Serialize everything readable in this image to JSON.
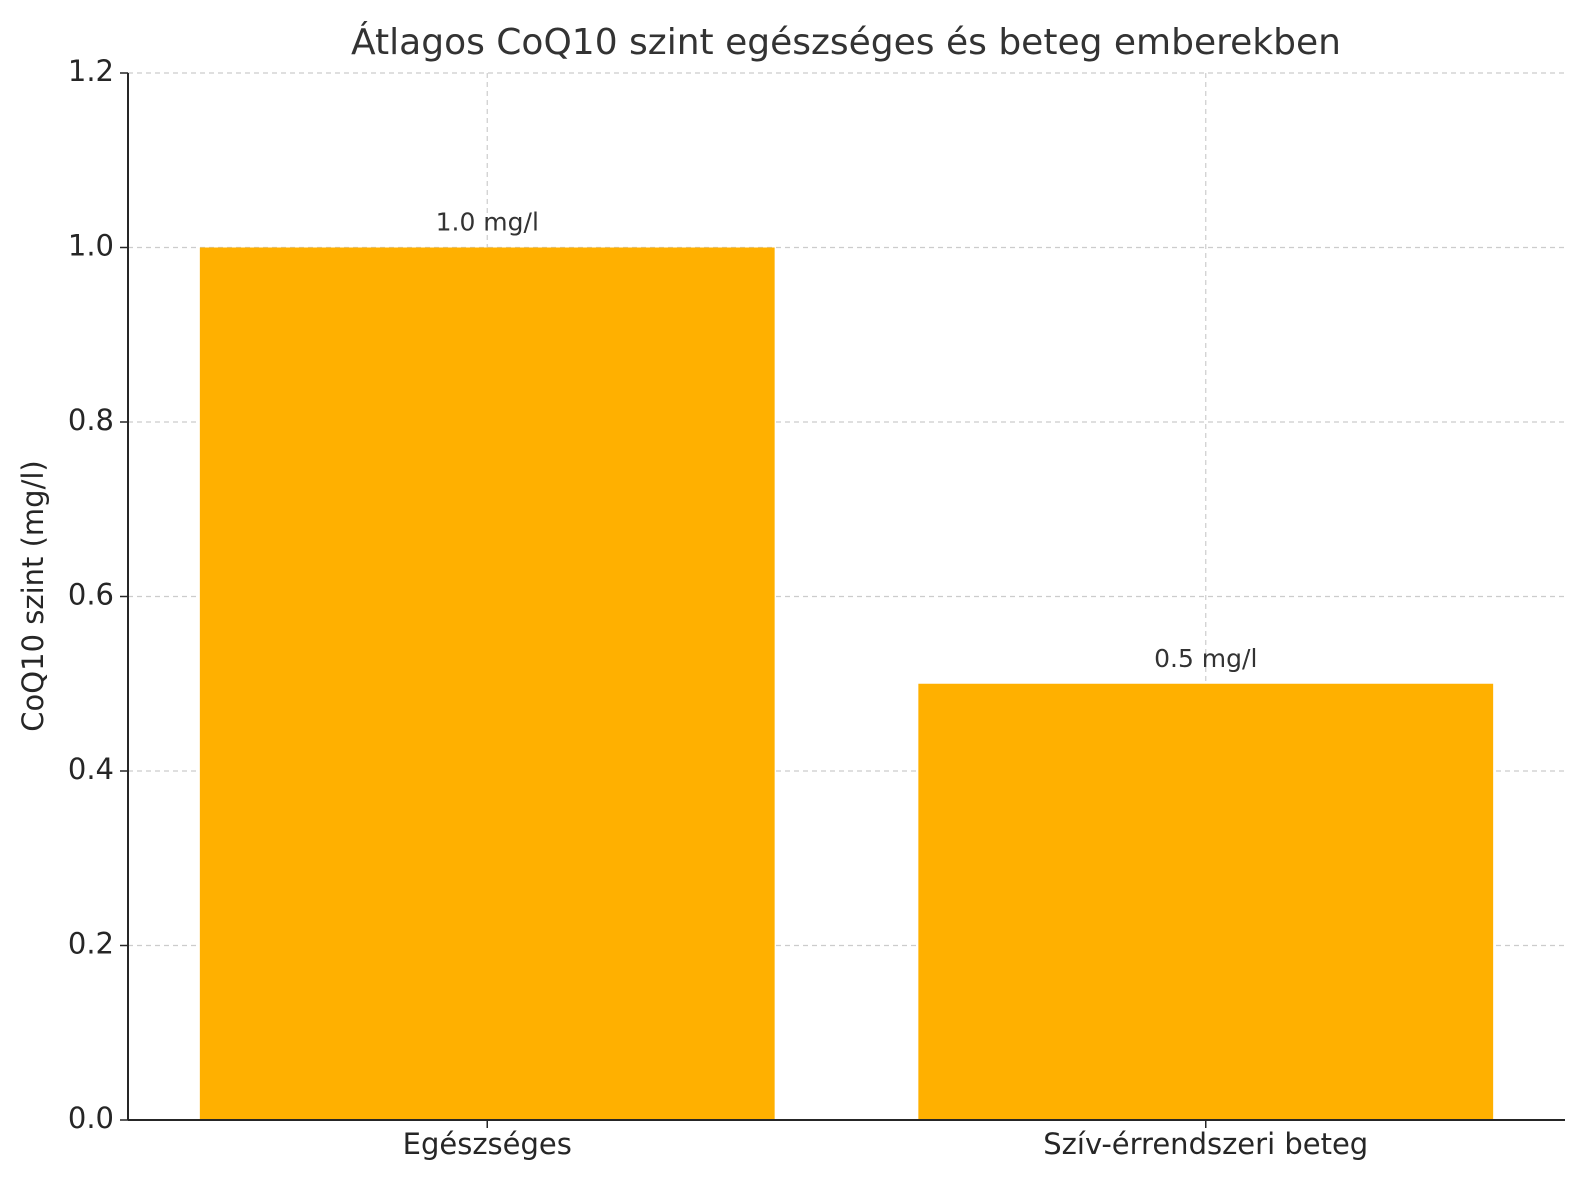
{
  "chart_data": {
    "type": "bar",
    "title": "Átlagos CoQ10 szint egészséges és beteg emberekben",
    "y_label": "CoQ10 szint (mg/l)",
    "categories": [
      "Egészséges",
      "Szív-érrendszeri beteg"
    ],
    "values": [
      1.0,
      0.5
    ],
    "value_labels": [
      "1.0 mg/l",
      "0.5 mg/l"
    ],
    "color": "#ffb000",
    "ylim": [
      0,
      1.2
    ],
    "yticks": [
      {
        "value": 0,
        "label": "0.0"
      },
      0.2,
      0.4,
      0.6,
      0.8,
      {
        "value": 1,
        "label": "1.0"
      },
      1.2
    ],
    "grid": true
  }
}
